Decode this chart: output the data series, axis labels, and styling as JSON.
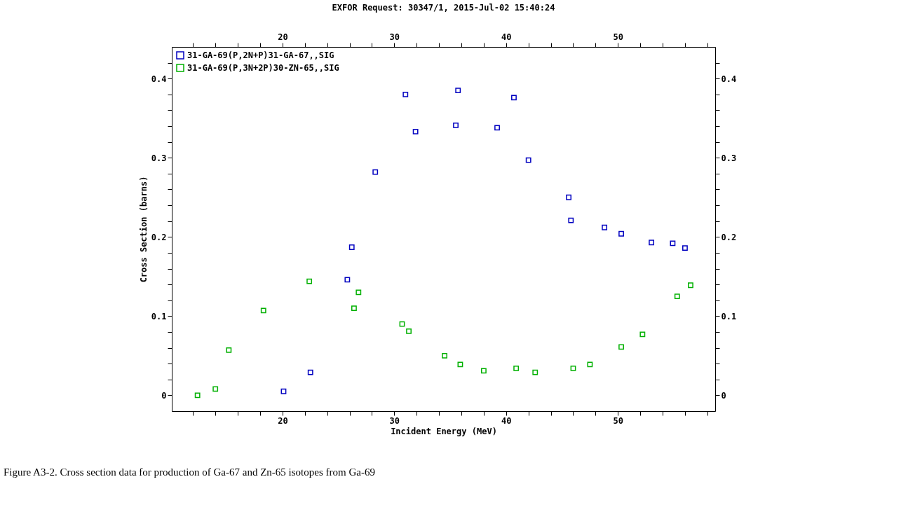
{
  "chart_data": {
    "type": "scatter",
    "title": "EXFOR Request: 30347/1, 2015-Jul-02 15:40:24",
    "xlabel": "Incident Energy (MeV)",
    "ylabel": "Cross Section (barns)",
    "annotations": [
      "Figure A3-2. Cross section data for production of Ga-67 and Zn-65 isotopes from Ga-69"
    ],
    "marker": "square",
    "grid": false,
    "legend": "top left",
    "xlim": [
      10.1,
      58.7
    ],
    "ylim": [
      -0.02,
      0.44
    ],
    "xticks": [
      {
        "value": 12,
        "label": null
      },
      {
        "value": 14,
        "label": null
      },
      {
        "value": 16,
        "label": null
      },
      {
        "value": 18,
        "label": null
      },
      20,
      {
        "value": 22,
        "label": null
      },
      {
        "value": 24,
        "label": null
      },
      {
        "value": 26,
        "label": null
      },
      {
        "value": 28,
        "label": null
      },
      30,
      {
        "value": 32,
        "label": null
      },
      {
        "value": 34,
        "label": null
      },
      {
        "value": 36,
        "label": null
      },
      {
        "value": 38,
        "label": null
      },
      40,
      {
        "value": 42,
        "label": null
      },
      {
        "value": 44,
        "label": null
      },
      {
        "value": 46,
        "label": null
      },
      {
        "value": 48,
        "label": null
      },
      50,
      {
        "value": 52,
        "label": null
      },
      {
        "value": 54,
        "label": null
      },
      {
        "value": 56,
        "label": null
      },
      {
        "value": 58,
        "label": null
      }
    ],
    "x2lim": [
      10.1,
      58.7
    ],
    "x2ticks": [
      {
        "value": 12,
        "label": null
      },
      {
        "value": 14,
        "label": null
      },
      {
        "value": 16,
        "label": null
      },
      {
        "value": 18,
        "label": null
      },
      20,
      {
        "value": 22,
        "label": null
      },
      {
        "value": 24,
        "label": null
      },
      {
        "value": 26,
        "label": null
      },
      {
        "value": 28,
        "label": null
      },
      30,
      {
        "value": 32,
        "label": null
      },
      {
        "value": 34,
        "label": null
      },
      {
        "value": 36,
        "label": null
      },
      {
        "value": 38,
        "label": null
      },
      40,
      {
        "value": 42,
        "label": null
      },
      {
        "value": 44,
        "label": null
      },
      {
        "value": 46,
        "label": null
      },
      {
        "value": 48,
        "label": null
      },
      50,
      {
        "value": 52,
        "label": null
      },
      {
        "value": 54,
        "label": null
      },
      {
        "value": 56,
        "label": null
      },
      {
        "value": 58,
        "label": null
      }
    ],
    "yticks": [
      0,
      {
        "value": 0.02,
        "label": null
      },
      {
        "value": 0.04,
        "label": null
      },
      {
        "value": 0.06,
        "label": null
      },
      {
        "value": 0.08,
        "label": null
      },
      0.1,
      {
        "value": 0.12,
        "label": null
      },
      {
        "value": 0.14,
        "label": null
      },
      {
        "value": 0.16,
        "label": null
      },
      {
        "value": 0.18,
        "label": null
      },
      0.2,
      {
        "value": 0.22,
        "label": null
      },
      {
        "value": 0.24,
        "label": null
      },
      {
        "value": 0.26,
        "label": null
      },
      {
        "value": 0.28,
        "label": null
      },
      0.3,
      {
        "value": 0.32,
        "label": null
      },
      {
        "value": 0.34,
        "label": null
      },
      {
        "value": 0.36,
        "label": null
      },
      {
        "value": 0.38,
        "label": null
      },
      0.4,
      {
        "value": 0.42,
        "label": null
      }
    ],
    "y2lim": [
      -0.02,
      0.44
    ],
    "y2ticks": [
      0,
      {
        "value": 0.02,
        "label": null
      },
      {
        "value": 0.04,
        "label": null
      },
      {
        "value": 0.06,
        "label": null
      },
      {
        "value": 0.08,
        "label": null
      },
      0.1,
      {
        "value": 0.12,
        "label": null
      },
      {
        "value": 0.14,
        "label": null
      },
      {
        "value": 0.16,
        "label": null
      },
      {
        "value": 0.18,
        "label": null
      },
      0.2,
      {
        "value": 0.22,
        "label": null
      },
      {
        "value": 0.24,
        "label": null
      },
      {
        "value": 0.26,
        "label": null
      },
      {
        "value": 0.28,
        "label": null
      },
      0.3,
      {
        "value": 0.32,
        "label": null
      },
      {
        "value": 0.34,
        "label": null
      },
      {
        "value": 0.36,
        "label": null
      },
      {
        "value": 0.38,
        "label": null
      },
      0.4,
      {
        "value": 0.42,
        "label": null
      }
    ],
    "series": [
      {
        "name": "31-GA-69(P,2N+P)31-GA-67,,SIG",
        "color": "#0000c0",
        "x": [
          20.1,
          22.5,
          25.8,
          26.2,
          28.3,
          31.0,
          31.9,
          35.5,
          35.7,
          39.2,
          40.7,
          42.0,
          45.6,
          45.8,
          48.8,
          50.3,
          53.0,
          54.9,
          56.0
        ],
        "values": [
          0.005,
          0.029,
          0.146,
          0.187,
          0.282,
          0.38,
          0.333,
          0.341,
          0.385,
          0.338,
          0.376,
          0.297,
          0.25,
          0.221,
          0.212,
          0.204,
          0.193,
          0.192,
          0.186
        ]
      },
      {
        "name": "31-GA-69(P,3N+2P)30-ZN-65,,SIG",
        "color": "#00b000",
        "axis": "y2",
        "x": [
          12.4,
          14.0,
          15.2,
          18.3,
          22.4,
          26.4,
          26.8,
          30.7,
          31.3,
          34.5,
          35.9,
          38.0,
          40.9,
          42.6,
          46.0,
          47.5,
          50.3,
          52.2,
          55.3,
          56.5
        ],
        "values": [
          0.0,
          0.008,
          0.057,
          0.107,
          0.144,
          0.11,
          0.13,
          0.09,
          0.081,
          0.05,
          0.039,
          0.031,
          0.034,
          0.029,
          0.034,
          0.039,
          0.061,
          0.077,
          0.125,
          0.139
        ]
      }
    ]
  }
}
